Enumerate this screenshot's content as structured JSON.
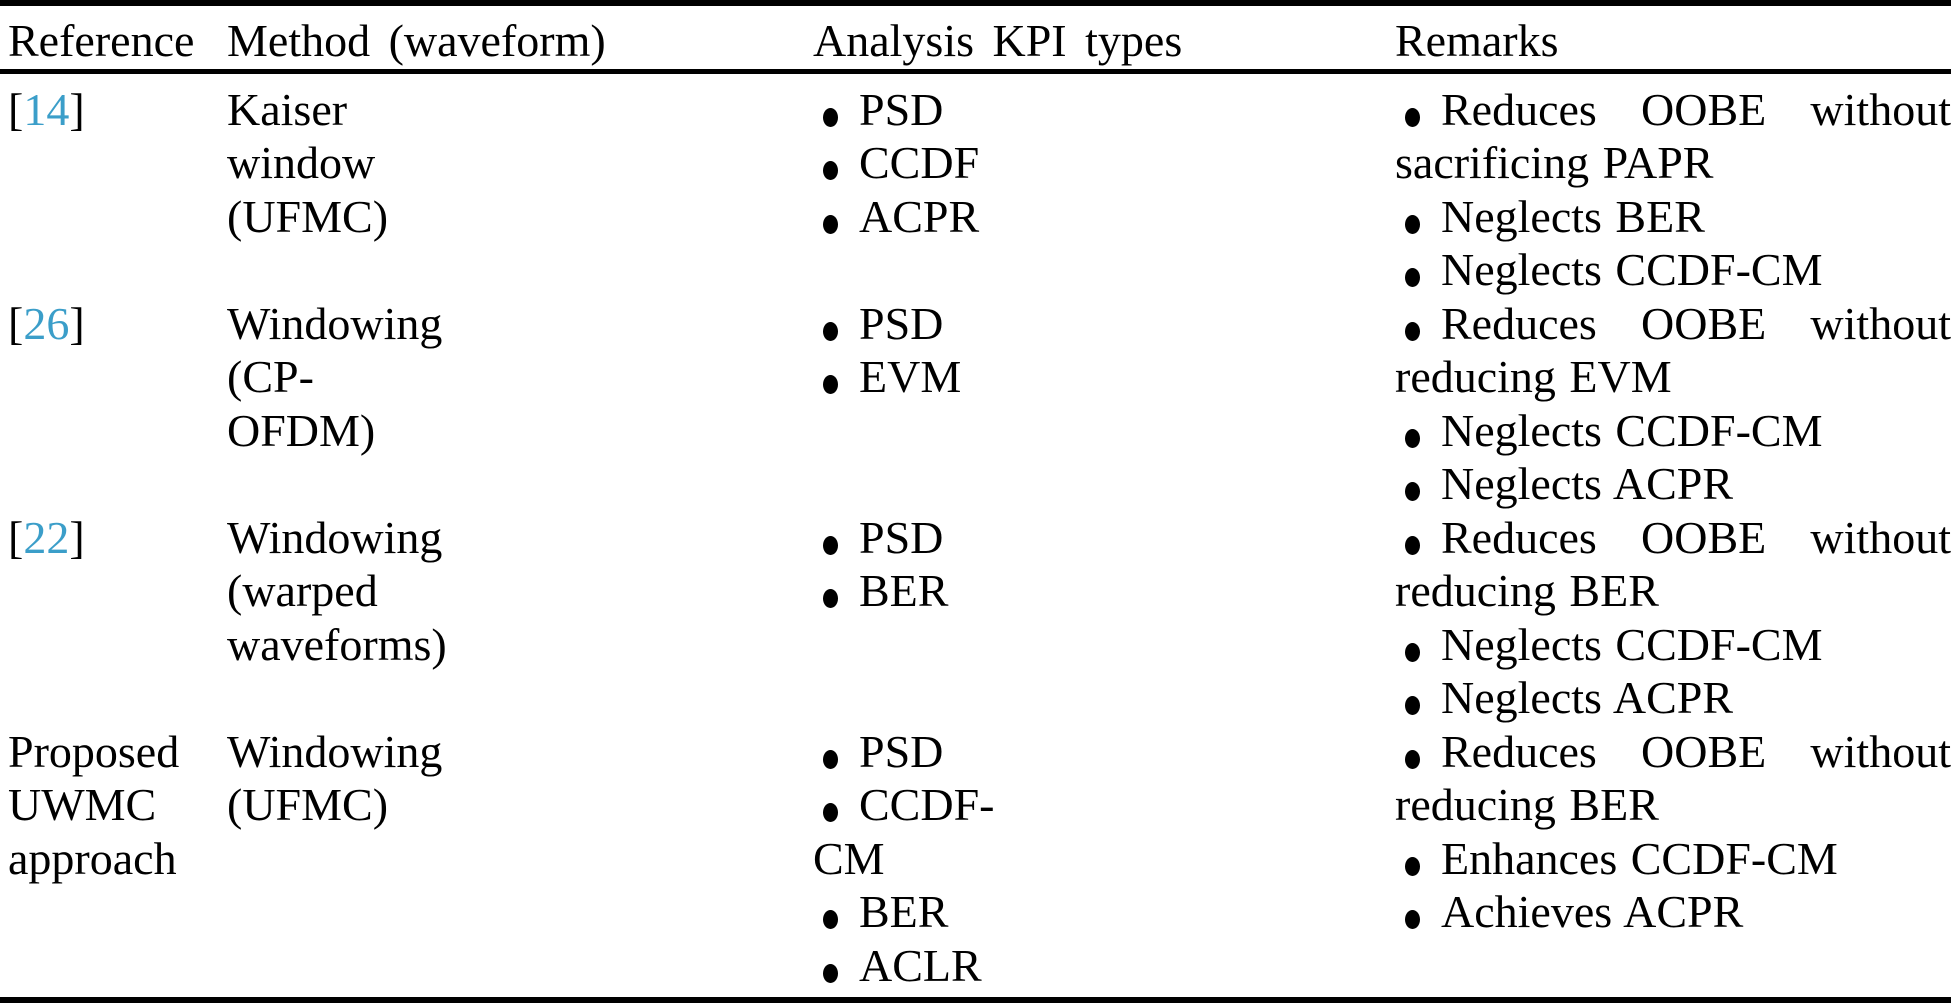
{
  "accent": {
    "citation_color": "#3b9ec9",
    "text_color": "#000000",
    "background_color": "#ffffff"
  },
  "table": {
    "headers": [
      "Reference",
      "Method (waveform)",
      "Analysis KPI types",
      "Remarks"
    ],
    "citation_brackets": {
      "open": "[",
      "close": "]"
    },
    "rows": [
      {
        "reference": {
          "citation": "14"
        },
        "method": "Kaiser window (UFMC)",
        "kpis": [
          "PSD",
          "CCDF",
          "ACPR"
        ],
        "remarks": [
          "Reduces OOBE without sacrificing PAPR",
          "Neglects BER",
          "Neglects CCDF-CM"
        ]
      },
      {
        "reference": {
          "citation": "26"
        },
        "method": "Windowing (CP-OFDM)",
        "kpis": [
          "PSD",
          "EVM"
        ],
        "remarks": [
          "Reduces OOBE without reducing EVM",
          "Neglects CCDF-CM",
          "Neglects ACPR"
        ]
      },
      {
        "reference": {
          "citation": "22"
        },
        "method": "Windowing (warped waveforms)",
        "kpis": [
          "PSD",
          "BER"
        ],
        "remarks": [
          "Reduces OOBE without reducing BER",
          "Neglects CCDF-CM",
          "Neglects ACPR"
        ]
      },
      {
        "reference": {
          "label": "Proposed UWMC approach"
        },
        "method": "Windowing (UFMC)",
        "kpis": [
          "PSD",
          "CCDF-CM",
          "BER",
          "ACLR"
        ],
        "remarks": [
          "Reduces OOBE without reducing BER",
          "Enhances CCDF-CM",
          "Achieves ACPR"
        ]
      }
    ]
  }
}
